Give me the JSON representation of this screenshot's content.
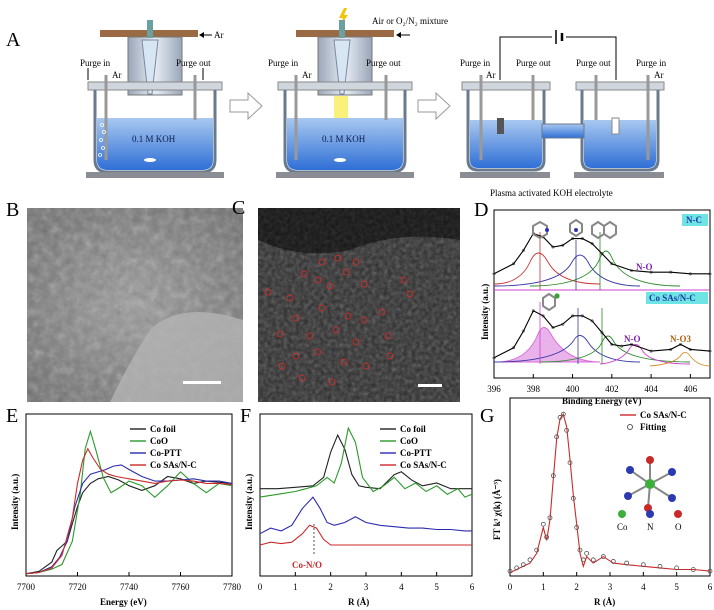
{
  "panelA": {
    "letter": "A",
    "ar_top": "Ar",
    "air_label": "Air or O₂/N₂ mixture",
    "purge_in": "Purge in",
    "purge_out": "Purge out",
    "ar": "Ar",
    "koh": "0.1 M KOH",
    "caption": "Plasma activated KOH electrolyte"
  },
  "panelB": {
    "letter": "B"
  },
  "panelC": {
    "letter": "C"
  },
  "panelD": {
    "letter": "D",
    "tag_top": "N-C",
    "tag_bottom": "Co SAs/N-C",
    "no_top": "N-O",
    "no_bottom": "N-O",
    "no3": "N-O3"
  },
  "panelE": {
    "letter": "E"
  },
  "panelF": {
    "letter": "F",
    "annotation": "Co-N/O"
  },
  "panelG": {
    "letter": "G",
    "atoms": [
      "Co",
      "N",
      "O"
    ]
  },
  "chart_data": [
    {
      "id": "D",
      "type": "line",
      "xlabel": "Binding Energy (eV)",
      "ylabel": "Intensity (a.u.)",
      "xlim": [
        396,
        407
      ],
      "xticks": [
        "396",
        "398",
        "400",
        "402",
        "404",
        "406"
      ],
      "series": [
        {
          "name": "N-C",
          "x": [
            396,
            397,
            397.5,
            398,
            398.5,
            399,
            399.5,
            400,
            400.5,
            401,
            401.5,
            402,
            403,
            404,
            405,
            406,
            407
          ],
          "y": [
            0.62,
            0.68,
            0.76,
            0.86,
            0.84,
            0.78,
            0.79,
            0.83,
            0.83,
            0.8,
            0.74,
            0.68,
            0.64,
            0.63,
            0.63,
            0.62,
            0.62
          ]
        },
        {
          "name": "Co SAs/N-C",
          "x": [
            396,
            397,
            397.5,
            398,
            398.5,
            399,
            399.5,
            400,
            400.5,
            401,
            401.5,
            402,
            402.5,
            403,
            404,
            405,
            405.5,
            406,
            407
          ],
          "y": [
            0.12,
            0.18,
            0.28,
            0.4,
            0.37,
            0.3,
            0.32,
            0.37,
            0.37,
            0.34,
            0.27,
            0.2,
            0.19,
            0.2,
            0.16,
            0.17,
            0.2,
            0.17,
            0.16
          ]
        }
      ]
    },
    {
      "id": "E",
      "type": "line",
      "xlabel": "Energy (eV)",
      "ylabel": "Intensity (a.u.)",
      "xlim": [
        7700,
        7780
      ],
      "xticks": [
        "7700",
        "7720",
        "7740",
        "7760",
        "7780"
      ],
      "legend": "top-right",
      "series": [
        {
          "name": "Co foil",
          "color": "#222222",
          "x": [
            7700,
            7705,
            7710,
            7712,
            7714,
            7716,
            7718,
            7720,
            7722,
            7725,
            7728,
            7732,
            7736,
            7740,
            7745,
            7750,
            7755,
            7760,
            7765,
            7770,
            7775,
            7780
          ],
          "y": [
            0.02,
            0.04,
            0.12,
            0.22,
            0.26,
            0.3,
            0.45,
            0.6,
            0.72,
            0.8,
            0.84,
            0.86,
            0.83,
            0.78,
            0.74,
            0.78,
            0.86,
            0.84,
            0.8,
            0.82,
            0.81,
            0.8
          ]
        },
        {
          "name": "CoO",
          "color": "#2a9a2a",
          "x": [
            7700,
            7705,
            7710,
            7714,
            7718,
            7721,
            7723,
            7725,
            7727,
            7730,
            7733,
            7736,
            7740,
            7745,
            7750,
            7755,
            7760,
            7765,
            7770,
            7775,
            7780
          ],
          "y": [
            0.02,
            0.03,
            0.06,
            0.1,
            0.3,
            0.7,
            1.1,
            1.25,
            1.1,
            0.85,
            0.72,
            0.76,
            0.82,
            0.78,
            0.68,
            0.78,
            0.9,
            0.8,
            0.72,
            0.8,
            0.78
          ]
        },
        {
          "name": "Co-PTT",
          "color": "#2b2bb0",
          "x": [
            7700,
            7705,
            7710,
            7713,
            7716,
            7719,
            7722,
            7725,
            7728,
            7731,
            7734,
            7737,
            7740,
            7745,
            7750,
            7755,
            7760,
            7765,
            7770,
            7775,
            7780
          ],
          "y": [
            0.02,
            0.03,
            0.08,
            0.16,
            0.3,
            0.6,
            0.8,
            0.88,
            0.9,
            0.92,
            0.95,
            0.96,
            0.92,
            0.86,
            0.82,
            0.82,
            0.83,
            0.84,
            0.82,
            0.82,
            0.8
          ]
        },
        {
          "name": "Co SAs/N-C",
          "color": "#cc2a2a",
          "x": [
            7700,
            7705,
            7710,
            7714,
            7718,
            7720,
            7722,
            7724,
            7726,
            7729,
            7732,
            7735,
            7740,
            7745,
            7750,
            7755,
            7760,
            7765,
            7770,
            7775,
            7780
          ],
          "y": [
            0.02,
            0.03,
            0.07,
            0.18,
            0.5,
            0.8,
            1.0,
            1.1,
            1.02,
            0.92,
            0.88,
            0.86,
            0.84,
            0.82,
            0.8,
            0.82,
            0.83,
            0.82,
            0.8,
            0.8,
            0.79
          ]
        }
      ]
    },
    {
      "id": "F",
      "type": "line",
      "xlabel": "R (Å)",
      "ylabel": "Intensity (a.u.)",
      "xlim": [
        0,
        6
      ],
      "xticks": [
        "0",
        "1",
        "2",
        "3",
        "4",
        "5",
        "6"
      ],
      "legend": "top-right",
      "series": [
        {
          "name": "Co foil",
          "color": "#222222",
          "x": [
            0,
            0.5,
            1,
            1.5,
            1.8,
            2.0,
            2.2,
            2.4,
            2.6,
            2.8,
            3.0,
            3.4,
            3.8,
            4.0,
            4.3,
            4.6,
            5.0,
            5.4,
            5.8,
            6.0
          ],
          "y": [
            0.62,
            0.62,
            0.63,
            0.64,
            0.7,
            0.88,
            1.0,
            0.9,
            0.72,
            0.64,
            0.63,
            0.62,
            0.72,
            0.74,
            0.68,
            0.64,
            0.66,
            0.62,
            0.62,
            0.62
          ]
        },
        {
          "name": "CoO",
          "color": "#2a9a2a",
          "x": [
            0,
            0.5,
            1,
            1.3,
            1.6,
            1.9,
            2.1,
            2.3,
            2.5,
            2.7,
            2.9,
            3.2,
            3.5,
            3.8,
            4.1,
            4.4,
            4.7,
            5.0,
            5.3,
            5.6,
            5.8,
            6.0
          ],
          "y": [
            0.56,
            0.58,
            0.6,
            0.62,
            0.64,
            0.7,
            0.66,
            0.8,
            1.05,
            0.95,
            0.7,
            0.6,
            0.64,
            0.7,
            0.62,
            0.66,
            0.6,
            0.64,
            0.58,
            0.62,
            0.56,
            0.58
          ]
        },
        {
          "name": "Co-PTT",
          "color": "#2b2bb0",
          "x": [
            0,
            0.3,
            0.6,
            0.9,
            1.2,
            1.5,
            1.7,
            1.9,
            2.1,
            2.4,
            2.7,
            3.0,
            3.4,
            3.8,
            4.2,
            4.6,
            5.0,
            5.4,
            5.8,
            6.0
          ],
          "y": [
            0.3,
            0.34,
            0.32,
            0.36,
            0.48,
            0.56,
            0.48,
            0.38,
            0.36,
            0.38,
            0.42,
            0.38,
            0.36,
            0.35,
            0.34,
            0.34,
            0.33,
            0.33,
            0.32,
            0.32
          ]
        },
        {
          "name": "Co SAs/N-C",
          "color": "#cc2a2a",
          "x": [
            0,
            0.3,
            0.6,
            0.9,
            1.2,
            1.4,
            1.6,
            1.8,
            2.0,
            2.3,
            2.6,
            3.0,
            3.5,
            4.0,
            4.5,
            5.0,
            5.5,
            6.0
          ],
          "y": [
            0.22,
            0.24,
            0.23,
            0.24,
            0.3,
            0.36,
            0.34,
            0.26,
            0.22,
            0.22,
            0.22,
            0.22,
            0.22,
            0.22,
            0.22,
            0.22,
            0.22,
            0.22
          ]
        }
      ]
    },
    {
      "id": "G",
      "type": "line",
      "xlabel": "R (Å)",
      "ylabel": "FT k³ χ(k) (Å⁻³)",
      "xlim": [
        0,
        6
      ],
      "xticks": [
        "0",
        "1",
        "2",
        "3",
        "4",
        "5",
        "6"
      ],
      "legend": "top-right",
      "series": [
        {
          "name": "Co SAs/N-C",
          "color": "#cc2a2a",
          "x": [
            0,
            0.2,
            0.4,
            0.6,
            0.8,
            1.0,
            1.1,
            1.2,
            1.3,
            1.4,
            1.5,
            1.6,
            1.7,
            1.8,
            1.9,
            2.0,
            2.1,
            2.2,
            2.3,
            2.5,
            2.8,
            3.1,
            3.5,
            4.0,
            4.5,
            5.0,
            5.5,
            6.0
          ],
          "y": [
            0.02,
            0.04,
            0.06,
            0.08,
            0.14,
            0.3,
            0.22,
            0.35,
            0.6,
            0.85,
            0.97,
            1.0,
            0.92,
            0.72,
            0.5,
            0.32,
            0.14,
            0.06,
            0.12,
            0.08,
            0.12,
            0.08,
            0.07,
            0.06,
            0.05,
            0.04,
            0.04,
            0.03
          ]
        },
        {
          "name": "Fitting",
          "color": "#555555",
          "x": [
            0,
            0.2,
            0.4,
            0.6,
            0.8,
            1.0,
            1.1,
            1.2,
            1.3,
            1.4,
            1.5,
            1.6,
            1.7,
            1.8,
            1.9,
            2.0,
            2.1,
            2.2,
            2.3,
            2.5,
            2.8,
            3.1,
            3.5,
            4.0,
            4.5,
            5.0,
            5.5,
            6.0
          ],
          "y": [
            0.03,
            0.05,
            0.07,
            0.1,
            0.16,
            0.32,
            0.24,
            0.36,
            0.62,
            0.86,
            0.98,
            1.0,
            0.9,
            0.7,
            0.48,
            0.3,
            0.16,
            0.1,
            0.14,
            0.1,
            0.12,
            0.09,
            0.08,
            0.07,
            0.06,
            0.05,
            0.04,
            0.03
          ]
        }
      ]
    }
  ]
}
